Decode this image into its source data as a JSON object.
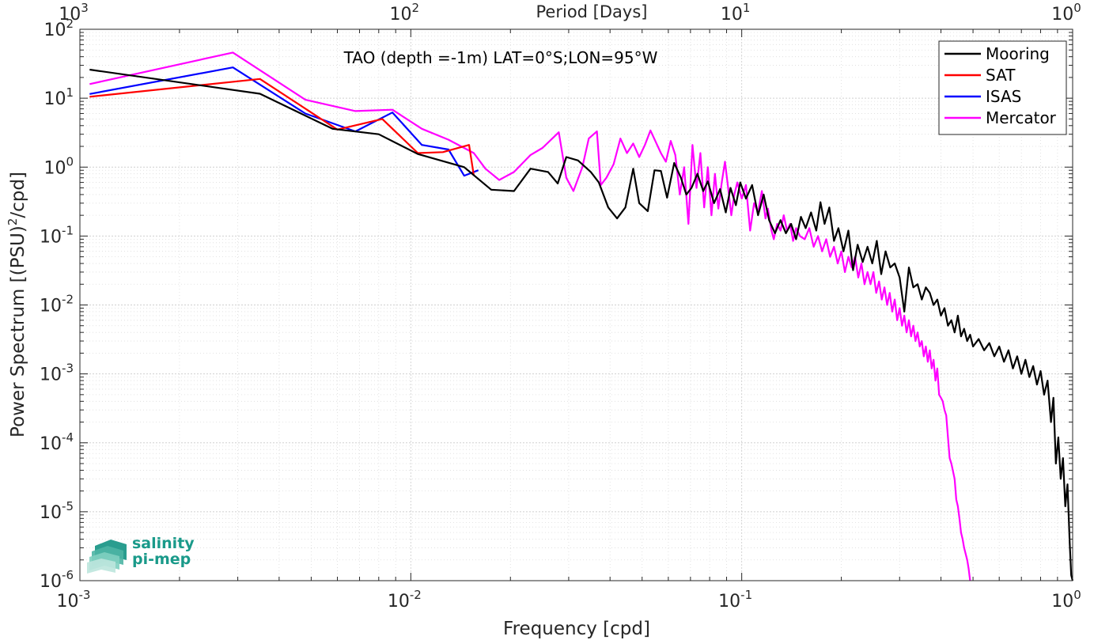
{
  "chart_data": {
    "type": "line",
    "title": "TAO (depth =-1m) LAT=0°S;LON=95°W",
    "xlabel": "Frequency [cpd]",
    "ylabel": "Power Spectrum [(PSU)",
    "ylabel_sup": "2",
    "ylabel_tail": "/cpd]",
    "top_xlabel": "Period [Days]",
    "xscale": "log",
    "yscale": "log",
    "xlim": [
      0.001,
      1
    ],
    "ylim": [
      1e-06,
      100
    ],
    "grid": true,
    "minor_grid": true,
    "legend_position": "top-right",
    "x_ticks": [
      {
        "value": 0.001,
        "base": "10",
        "exp": "-3"
      },
      {
        "value": 0.01,
        "base": "10",
        "exp": "-2"
      },
      {
        "value": 0.1,
        "base": "10",
        "exp": "-1"
      },
      {
        "value": 1,
        "base": "10",
        "exp": "0"
      }
    ],
    "top_ticks": [
      {
        "value": 0.001,
        "base": "10",
        "exp": "3"
      },
      {
        "value": 0.01,
        "base": "10",
        "exp": "2"
      },
      {
        "value": 0.1,
        "base": "10",
        "exp": "1"
      },
      {
        "value": 1,
        "base": "10",
        "exp": "0"
      }
    ],
    "y_ticks": [
      {
        "value": 100,
        "base": "10",
        "exp": "2"
      },
      {
        "value": 10,
        "base": "10",
        "exp": "1"
      },
      {
        "value": 1,
        "base": "10",
        "exp": "0"
      },
      {
        "value": 0.1,
        "base": "10",
        "exp": "-1"
      },
      {
        "value": 0.01,
        "base": "10",
        "exp": "-2"
      },
      {
        "value": 0.001,
        "base": "10",
        "exp": "-3"
      },
      {
        "value": 0.0001,
        "base": "10",
        "exp": "-4"
      },
      {
        "value": 1e-05,
        "base": "10",
        "exp": "-5"
      },
      {
        "value": 1e-06,
        "base": "10",
        "exp": "-6"
      }
    ],
    "series": [
      {
        "name": "Mooring",
        "color": "#000000",
        "points": [
          [
            0.00107,
            26
          ],
          [
            0.0035,
            11.6
          ],
          [
            0.0058,
            3.6
          ],
          [
            0.008,
            3.0
          ],
          [
            0.0105,
            1.55
          ],
          [
            0.0145,
            1.0
          ],
          [
            0.0175,
            0.47
          ],
          [
            0.0205,
            0.45
          ],
          [
            0.023,
            0.95
          ],
          [
            0.026,
            0.85
          ],
          [
            0.0278,
            0.58
          ],
          [
            0.0295,
            1.4
          ],
          [
            0.032,
            1.25
          ],
          [
            0.035,
            0.85
          ],
          [
            0.037,
            0.6
          ],
          [
            0.0395,
            0.26
          ],
          [
            0.042,
            0.18
          ],
          [
            0.0445,
            0.26
          ],
          [
            0.047,
            0.95
          ],
          [
            0.049,
            0.3
          ],
          [
            0.052,
            0.23
          ],
          [
            0.0545,
            0.9
          ],
          [
            0.057,
            0.88
          ],
          [
            0.0595,
            0.36
          ],
          [
            0.0625,
            1.15
          ],
          [
            0.0655,
            0.7
          ],
          [
            0.068,
            0.4
          ],
          [
            0.0705,
            0.5
          ],
          [
            0.0735,
            0.8
          ],
          [
            0.0765,
            0.45
          ],
          [
            0.079,
            0.62
          ],
          [
            0.0825,
            0.3
          ],
          [
            0.086,
            0.48
          ],
          [
            0.0895,
            0.22
          ],
          [
            0.0925,
            0.5
          ],
          [
            0.096,
            0.28
          ],
          [
            0.099,
            0.6
          ],
          [
            0.103,
            0.35
          ],
          [
            0.1075,
            0.55
          ],
          [
            0.112,
            0.2
          ],
          [
            0.1165,
            0.4
          ],
          [
            0.121,
            0.17
          ],
          [
            0.126,
            0.11
          ],
          [
            0.131,
            0.17
          ],
          [
            0.136,
            0.11
          ],
          [
            0.141,
            0.15
          ],
          [
            0.146,
            0.09
          ],
          [
            0.151,
            0.19
          ],
          [
            0.156,
            0.13
          ],
          [
            0.162,
            0.22
          ],
          [
            0.168,
            0.12
          ],
          [
            0.173,
            0.31
          ],
          [
            0.178,
            0.15
          ],
          [
            0.184,
            0.26
          ],
          [
            0.19,
            0.085
          ],
          [
            0.196,
            0.13
          ],
          [
            0.203,
            0.06
          ],
          [
            0.21,
            0.12
          ],
          [
            0.217,
            0.032
          ],
          [
            0.224,
            0.075
          ],
          [
            0.232,
            0.042
          ],
          [
            0.24,
            0.07
          ],
          [
            0.248,
            0.04
          ],
          [
            0.256,
            0.085
          ],
          [
            0.264,
            0.028
          ],
          [
            0.272,
            0.06
          ],
          [
            0.281,
            0.035
          ],
          [
            0.29,
            0.04
          ],
          [
            0.3,
            0.025
          ],
          [
            0.31,
            0.008
          ],
          [
            0.32,
            0.035
          ],
          [
            0.33,
            0.018
          ],
          [
            0.34,
            0.02
          ],
          [
            0.35,
            0.012
          ],
          [
            0.36,
            0.018
          ],
          [
            0.37,
            0.015
          ],
          [
            0.38,
            0.01
          ],
          [
            0.39,
            0.012
          ],
          [
            0.4,
            0.007
          ],
          [
            0.41,
            0.009
          ],
          [
            0.42,
            0.005
          ],
          [
            0.43,
            0.006
          ],
          [
            0.44,
            0.004
          ],
          [
            0.45,
            0.007
          ],
          [
            0.46,
            0.0035
          ],
          [
            0.47,
            0.0045
          ],
          [
            0.48,
            0.003
          ],
          [
            0.49,
            0.0037
          ],
          [
            0.5,
            0.0025
          ],
          [
            0.52,
            0.0032
          ],
          [
            0.54,
            0.0022
          ],
          [
            0.56,
            0.0028
          ],
          [
            0.58,
            0.0018
          ],
          [
            0.6,
            0.0025
          ],
          [
            0.62,
            0.0015
          ],
          [
            0.64,
            0.0022
          ],
          [
            0.66,
            0.0012
          ],
          [
            0.68,
            0.0018
          ],
          [
            0.7,
            0.001
          ],
          [
            0.72,
            0.0016
          ],
          [
            0.74,
            0.0009
          ],
          [
            0.76,
            0.0013
          ],
          [
            0.78,
            0.0007
          ],
          [
            0.8,
            0.0011
          ],
          [
            0.82,
            0.0005
          ],
          [
            0.84,
            0.0008
          ],
          [
            0.86,
            0.0002
          ],
          [
            0.875,
            0.00045
          ],
          [
            0.89,
            5e-05
          ],
          [
            0.905,
            0.00012
          ],
          [
            0.92,
            3e-05
          ],
          [
            0.935,
            6e-05
          ],
          [
            0.95,
            1.2e-05
          ],
          [
            0.965,
            2.5e-05
          ],
          [
            0.98,
            3.5e-06
          ],
          [
            0.99,
            1.2e-06
          ],
          [
            1.0,
            1e-06
          ]
        ]
      },
      {
        "name": "SAT",
        "color": "#ff0000",
        "points": [
          [
            0.00107,
            10.5
          ],
          [
            0.0035,
            19
          ],
          [
            0.006,
            3.5
          ],
          [
            0.0082,
            5.0
          ],
          [
            0.0105,
            1.6
          ],
          [
            0.0125,
            1.65
          ],
          [
            0.015,
            2.1
          ],
          [
            0.0155,
            0.75
          ]
        ]
      },
      {
        "name": "ISAS",
        "color": "#0000ff",
        "points": [
          [
            0.00107,
            11.5
          ],
          [
            0.0029,
            28
          ],
          [
            0.0048,
            6.0
          ],
          [
            0.0068,
            3.3
          ],
          [
            0.0088,
            6.2
          ],
          [
            0.0108,
            2.1
          ],
          [
            0.013,
            1.8
          ],
          [
            0.0145,
            0.75
          ],
          [
            0.016,
            0.9
          ]
        ]
      },
      {
        "name": "Mercator",
        "color": "#ff00ff",
        "points": [
          [
            0.00107,
            16
          ],
          [
            0.0029,
            46
          ],
          [
            0.0048,
            9.5
          ],
          [
            0.0068,
            6.5
          ],
          [
            0.0088,
            6.8
          ],
          [
            0.0108,
            3.6
          ],
          [
            0.013,
            2.5
          ],
          [
            0.0155,
            1.6
          ],
          [
            0.0168,
            0.95
          ],
          [
            0.0185,
            0.65
          ],
          [
            0.0205,
            0.85
          ],
          [
            0.023,
            1.5
          ],
          [
            0.025,
            1.9
          ],
          [
            0.028,
            3.2
          ],
          [
            0.0295,
            0.7
          ],
          [
            0.031,
            0.45
          ],
          [
            0.033,
            1.0
          ],
          [
            0.0345,
            2.6
          ],
          [
            0.0365,
            3.3
          ],
          [
            0.0375,
            0.55
          ],
          [
            0.039,
            0.7
          ],
          [
            0.041,
            1.1
          ],
          [
            0.043,
            2.6
          ],
          [
            0.045,
            1.6
          ],
          [
            0.047,
            2.2
          ],
          [
            0.049,
            1.4
          ],
          [
            0.051,
            2.1
          ],
          [
            0.053,
            3.4
          ],
          [
            0.055,
            2.3
          ],
          [
            0.057,
            1.6
          ],
          [
            0.059,
            1.2
          ],
          [
            0.061,
            2.4
          ],
          [
            0.063,
            1.5
          ],
          [
            0.065,
            0.4
          ],
          [
            0.067,
            1.0
          ],
          [
            0.069,
            0.15
          ],
          [
            0.071,
            2.1
          ],
          [
            0.073,
            0.5
          ],
          [
            0.075,
            1.6
          ],
          [
            0.077,
            0.26
          ],
          [
            0.079,
            1.0
          ],
          [
            0.081,
            0.2
          ],
          [
            0.083,
            0.8
          ],
          [
            0.085,
            0.25
          ],
          [
            0.087,
            0.6
          ],
          [
            0.089,
            1.2
          ],
          [
            0.091,
            0.5
          ],
          [
            0.093,
            0.2
          ],
          [
            0.095,
            0.4
          ],
          [
            0.097,
            0.6
          ],
          [
            0.1,
            0.35
          ],
          [
            0.103,
            0.55
          ],
          [
            0.106,
            0.12
          ],
          [
            0.109,
            0.3
          ],
          [
            0.112,
            0.22
          ],
          [
            0.115,
            0.45
          ],
          [
            0.118,
            0.18
          ],
          [
            0.12,
            0.25
          ],
          [
            0.123,
            0.12
          ],
          [
            0.125,
            0.09
          ],
          [
            0.128,
            0.15
          ],
          [
            0.131,
            0.12
          ],
          [
            0.134,
            0.2
          ],
          [
            0.137,
            0.12
          ],
          [
            0.14,
            0.15
          ],
          [
            0.143,
            0.085
          ],
          [
            0.146,
            0.13
          ],
          [
            0.15,
            0.1
          ],
          [
            0.155,
            0.09
          ],
          [
            0.16,
            0.13
          ],
          [
            0.165,
            0.07
          ],
          [
            0.17,
            0.1
          ],
          [
            0.175,
            0.06
          ],
          [
            0.18,
            0.09
          ],
          [
            0.185,
            0.05
          ],
          [
            0.19,
            0.07
          ],
          [
            0.195,
            0.04
          ],
          [
            0.2,
            0.06
          ],
          [
            0.205,
            0.03
          ],
          [
            0.21,
            0.05
          ],
          [
            0.215,
            0.035
          ],
          [
            0.22,
            0.05
          ],
          [
            0.225,
            0.025
          ],
          [
            0.23,
            0.04
          ],
          [
            0.235,
            0.02
          ],
          [
            0.24,
            0.03
          ],
          [
            0.245,
            0.02
          ],
          [
            0.25,
            0.03
          ],
          [
            0.255,
            0.015
          ],
          [
            0.26,
            0.022
          ],
          [
            0.265,
            0.012
          ],
          [
            0.27,
            0.018
          ],
          [
            0.275,
            0.01
          ],
          [
            0.28,
            0.015
          ],
          [
            0.285,
            0.008
          ],
          [
            0.29,
            0.012
          ],
          [
            0.295,
            0.006
          ],
          [
            0.3,
            0.009
          ],
          [
            0.305,
            0.005
          ],
          [
            0.31,
            0.007
          ],
          [
            0.315,
            0.004
          ],
          [
            0.32,
            0.006
          ],
          [
            0.325,
            0.0035
          ],
          [
            0.33,
            0.005
          ],
          [
            0.335,
            0.003
          ],
          [
            0.34,
            0.004
          ],
          [
            0.345,
            0.0025
          ],
          [
            0.35,
            0.003
          ],
          [
            0.355,
            0.0018
          ],
          [
            0.36,
            0.0025
          ],
          [
            0.365,
            0.0015
          ],
          [
            0.37,
            0.0022
          ],
          [
            0.375,
            0.0012
          ],
          [
            0.38,
            0.0016
          ],
          [
            0.385,
            0.0008
          ],
          [
            0.39,
            0.0012
          ],
          [
            0.395,
            0.0005
          ],
          [
            0.4,
            0.00045
          ],
          [
            0.405,
            0.0004
          ],
          [
            0.41,
            0.0003
          ],
          [
            0.415,
            0.00025
          ],
          [
            0.42,
            0.00012
          ],
          [
            0.425,
            6e-05
          ],
          [
            0.43,
            5e-05
          ],
          [
            0.44,
            3e-05
          ],
          [
            0.445,
            1.5e-05
          ],
          [
            0.45,
            1.2e-05
          ],
          [
            0.455,
            8e-06
          ],
          [
            0.46,
            5e-06
          ],
          [
            0.465,
            4e-06
          ],
          [
            0.47,
            3e-06
          ],
          [
            0.48,
            2e-06
          ],
          [
            0.485,
            1.5e-06
          ],
          [
            0.49,
            1e-06
          ]
        ]
      }
    ]
  },
  "logo": {
    "line1": "salinity",
    "line2": "pi-mep"
  }
}
